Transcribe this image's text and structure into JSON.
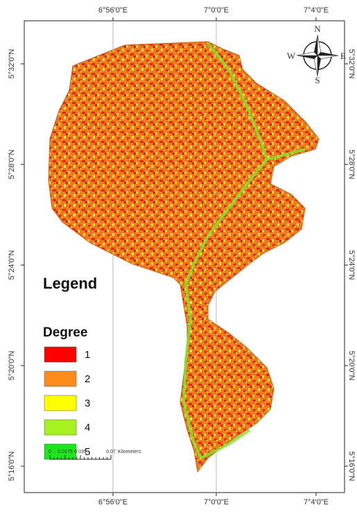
{
  "map": {
    "x_labels": [
      "6°56'0\"E",
      "7°0'0\"E",
      "7°4'0\"E"
    ],
    "y_labels": [
      "5°32'0\"N",
      "5°28'0\"N",
      "5°24'0\"N",
      "5°20'0\"N",
      "5°16'0\"N"
    ],
    "compass": {
      "n": "N",
      "e": "E",
      "s": "S",
      "w": "W"
    },
    "legend": {
      "title": "Legend",
      "subtitle": "Degree",
      "items": [
        {
          "label": "1",
          "color": "#ff0000"
        },
        {
          "label": "2",
          "color": "#ff8c1a"
        },
        {
          "label": "3",
          "color": "#ffff00"
        },
        {
          "label": "4",
          "color": "#a6f21f"
        },
        {
          "label": "5",
          "color": "#1ee61e"
        }
      ]
    },
    "scale_bar": {
      "ticks": [
        "0",
        "0.0175",
        "0.035",
        "0.07"
      ],
      "unit": "Kilometers"
    }
  }
}
